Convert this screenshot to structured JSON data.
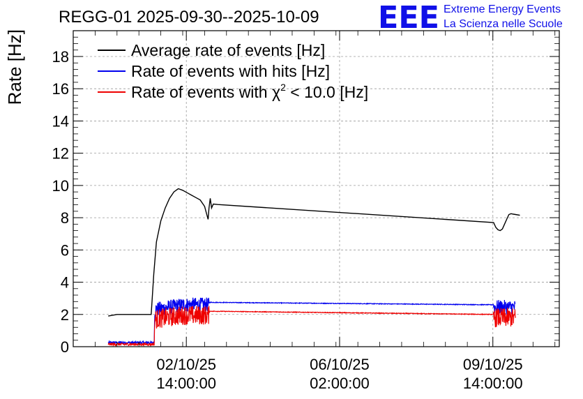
{
  "chart_data": {
    "type": "line",
    "title": "REGG-01 2025-09-30--2025-10-09",
    "ylabel": "Rate [Hz]",
    "xlabel": "",
    "ylim": [
      0,
      19.6
    ],
    "grid": true,
    "legend_position": "top-left",
    "y_ticks": [
      0,
      2,
      4,
      6,
      8,
      10,
      12,
      14,
      16,
      18
    ],
    "x_ticks": [
      {
        "date": "02/10/25",
        "time": "14:00:00",
        "t": 2.583
      },
      {
        "date": "06/10/25",
        "time": "02:00:00",
        "t": 6.083
      },
      {
        "date": "09/10/25",
        "time": "14:00:00",
        "t": 9.583
      }
    ],
    "xlim": [
      0,
      11.1
    ],
    "legend": [
      {
        "prefix": "Average rate of events [Hz]",
        "sup": "",
        "suffix": "",
        "color": "#000000"
      },
      {
        "prefix": "Rate of events with hits [Hz]",
        "sup": "",
        "suffix": "",
        "color": "#0000ee"
      },
      {
        "prefix": "Rate of events with χ",
        "sup": "2",
        "suffix": " < 10.0 [Hz]",
        "color": "#ee0000"
      }
    ],
    "series": [
      {
        "name": "Average rate of events [Hz]",
        "color": "#000000",
        "noise": 0.0,
        "x": [
          0.8,
          1.0,
          1.3,
          1.6,
          1.78,
          1.84,
          1.9,
          2.0,
          2.1,
          2.2,
          2.3,
          2.4,
          2.5,
          2.6,
          2.7,
          2.8,
          2.9,
          3.0,
          3.05,
          3.08,
          3.1,
          3.13,
          3.16,
          3.2,
          3.3,
          9.6,
          9.65,
          9.7,
          9.75,
          9.8,
          9.85,
          9.9,
          9.95,
          10.0,
          10.05,
          10.1,
          10.2
        ],
        "y": [
          1.9,
          2.0,
          2.0,
          2.0,
          2.0,
          4.5,
          6.5,
          7.8,
          8.6,
          9.2,
          9.6,
          9.8,
          9.7,
          9.55,
          9.4,
          9.25,
          9.1,
          8.7,
          8.2,
          7.9,
          8.6,
          9.2,
          8.6,
          8.85,
          8.82,
          7.7,
          7.4,
          7.25,
          7.2,
          7.3,
          7.6,
          7.9,
          8.2,
          8.25,
          8.22,
          8.2,
          8.15
        ],
        "y_cut": [],
        "t_fill": []
      },
      {
        "name": "Rate of events with hits [Hz]",
        "color": "#0000ee",
        "noise": 0.45,
        "x": [
          0.8,
          1.85,
          1.86,
          2.5,
          3.1,
          3.11,
          9.6,
          9.61,
          10.1
        ],
        "y": [
          0.25,
          0.25,
          2.3,
          2.6,
          2.6,
          2.75,
          2.6,
          2.45,
          2.45
        ],
        "y_cut": [],
        "t_fill": []
      },
      {
        "name": "Rate of events with χ² < 10.0 [Hz]",
        "color": "#ee0000",
        "noise": 0.6,
        "x": [
          0.8,
          1.85,
          1.86,
          2.5,
          3.1,
          3.11,
          9.6,
          9.61,
          10.1
        ],
        "y": [
          0.15,
          0.15,
          1.7,
          1.95,
          1.95,
          2.2,
          2.0,
          1.8,
          1.8
        ],
        "y_cut": [],
        "t_fill": []
      }
    ]
  },
  "logo": {
    "letters": "EEE",
    "line1": "Extreme Energy Events",
    "line2": "La Scienza nelle Scuole"
  }
}
